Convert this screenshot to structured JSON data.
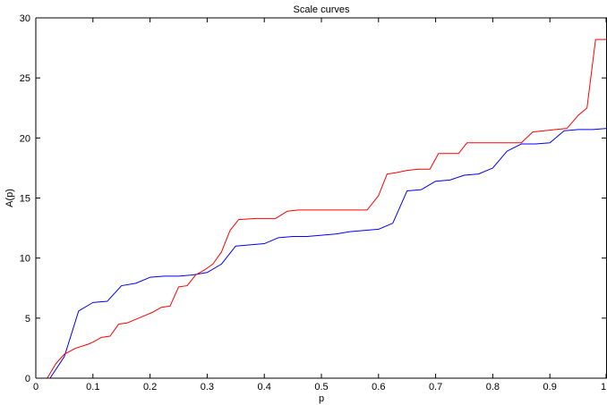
{
  "chart_data": {
    "type": "line",
    "title": "Scale curves",
    "xlabel": "p",
    "ylabel": "A(p)",
    "xlim": [
      0,
      1
    ],
    "ylim": [
      0,
      30
    ],
    "x_ticks": [
      0,
      0.1,
      0.2,
      0.3,
      0.4,
      0.5,
      0.6,
      0.7,
      0.8,
      0.9,
      1
    ],
    "x_tick_labels": [
      "0",
      "0.1",
      "0.2",
      "0.3",
      "0.4",
      "0.5",
      "0.6",
      "0.7",
      "0.8",
      "0.9",
      "1"
    ],
    "y_ticks": [
      0,
      5,
      10,
      15,
      20,
      25,
      30
    ],
    "y_tick_labels": [
      "0",
      "5",
      "10",
      "15",
      "20",
      "25",
      "30"
    ],
    "grid": false,
    "series": [
      {
        "color": "#0000ff",
        "x": [
          0.025,
          0.05,
          0.075,
          0.1,
          0.125,
          0.15,
          0.175,
          0.2,
          0.225,
          0.25,
          0.275,
          0.3,
          0.325,
          0.35,
          0.375,
          0.4,
          0.425,
          0.45,
          0.475,
          0.5,
          0.525,
          0.55,
          0.575,
          0.6,
          0.625,
          0.65,
          0.675,
          0.7,
          0.725,
          0.75,
          0.775,
          0.8,
          0.825,
          0.85,
          0.875,
          0.9,
          0.925,
          0.95,
          0.975,
          1.0
        ],
        "y": [
          0,
          1.8,
          5.6,
          6.3,
          6.4,
          7.7,
          7.9,
          8.4,
          8.5,
          8.5,
          8.6,
          8.8,
          9.5,
          11.0,
          11.1,
          11.2,
          11.7,
          11.8,
          11.8,
          11.9,
          12.0,
          12.2,
          12.3,
          12.4,
          12.9,
          15.6,
          15.7,
          16.4,
          16.5,
          16.9,
          17.0,
          17.5,
          18.9,
          19.5,
          19.5,
          19.6,
          20.6,
          20.7,
          20.7,
          20.8
        ]
      },
      {
        "color": "#ff0000",
        "x": [
          0.02,
          0.035,
          0.05,
          0.07,
          0.09,
          0.1,
          0.115,
          0.13,
          0.145,
          0.16,
          0.175,
          0.19,
          0.205,
          0.22,
          0.235,
          0.25,
          0.265,
          0.28,
          0.295,
          0.31,
          0.325,
          0.34,
          0.355,
          0.37,
          0.385,
          0.4,
          0.42,
          0.44,
          0.46,
          0.48,
          0.5,
          0.52,
          0.54,
          0.56,
          0.58,
          0.6,
          0.615,
          0.63,
          0.65,
          0.67,
          0.69,
          0.705,
          0.72,
          0.74,
          0.755,
          0.77,
          0.79,
          0.81,
          0.83,
          0.85,
          0.87,
          0.89,
          0.91,
          0.93,
          0.95,
          0.965,
          0.98,
          1.0
        ],
        "y": [
          0,
          1.2,
          2.0,
          2.5,
          2.8,
          3.0,
          3.4,
          3.5,
          4.5,
          4.6,
          4.9,
          5.2,
          5.5,
          5.9,
          6.0,
          7.6,
          7.7,
          8.6,
          9.0,
          9.5,
          10.5,
          12.3,
          13.2,
          13.25,
          13.3,
          13.3,
          13.3,
          13.9,
          14.0,
          14.0,
          14.0,
          14.0,
          14.0,
          14.0,
          14.0,
          15.2,
          17.0,
          17.1,
          17.3,
          17.4,
          17.4,
          18.7,
          18.7,
          18.7,
          19.6,
          19.6,
          19.6,
          19.6,
          19.6,
          19.6,
          20.5,
          20.6,
          20.7,
          20.8,
          21.9,
          22.5,
          28.2,
          28.2
        ]
      }
    ]
  }
}
